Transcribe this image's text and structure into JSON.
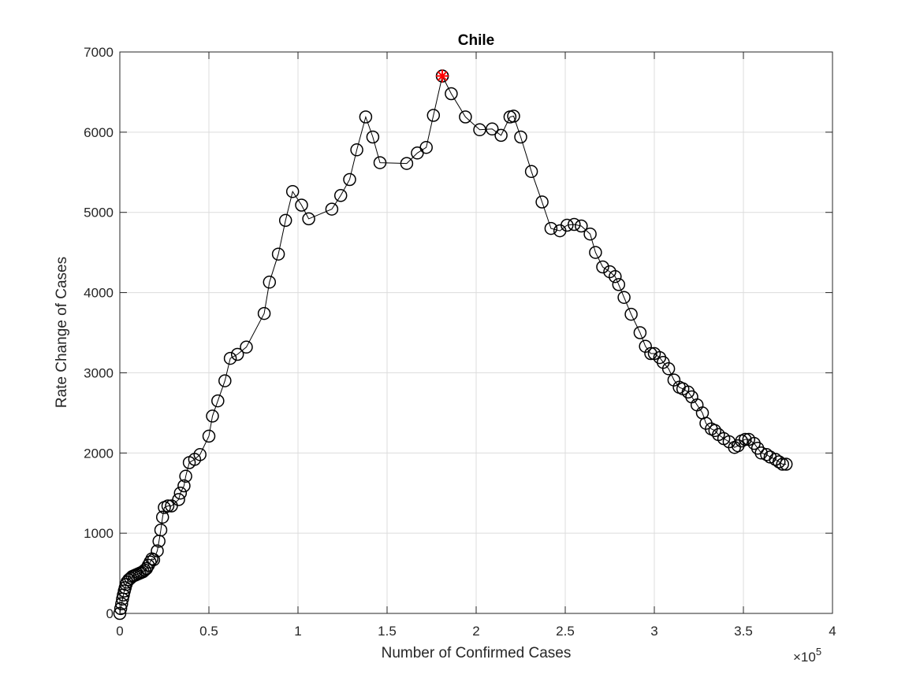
{
  "chart_data": {
    "type": "scatter",
    "title": "Chile",
    "xlabel": "Number of Confirmed Cases",
    "ylabel": "Rate Change of Cases",
    "x_multiplier_prefix": "×10",
    "x_multiplier_exponent": "5",
    "xlim": [
      0,
      4
    ],
    "ylim": [
      0,
      7000
    ],
    "xticks": [
      0,
      0.5,
      1,
      1.5,
      2,
      2.5,
      3,
      3.5,
      4
    ],
    "xtick_labels": [
      "0",
      "0.5",
      "1",
      "1.5",
      "2",
      "2.5",
      "3",
      "3.5",
      "4"
    ],
    "yticks": [
      0,
      1000,
      2000,
      3000,
      4000,
      5000,
      6000,
      7000
    ],
    "ytick_labels": [
      "0",
      "1000",
      "2000",
      "3000",
      "4000",
      "5000",
      "6000",
      "7000"
    ],
    "grid": true,
    "line_color": "#000000",
    "marker": "circle",
    "highlight_color": "#ff0000",
    "highlight_marker": "asterisk",
    "highlight_point": [
      1.81,
      6700
    ],
    "x": [
      0.0,
      0.005,
      0.01,
      0.015,
      0.02,
      0.025,
      0.03,
      0.035,
      0.04,
      0.05,
      0.06,
      0.07,
      0.08,
      0.09,
      0.1,
      0.11,
      0.12,
      0.13,
      0.14,
      0.15,
      0.16,
      0.17,
      0.18,
      0.19,
      0.21,
      0.22,
      0.23,
      0.24,
      0.25,
      0.27,
      0.29,
      0.33,
      0.34,
      0.36,
      0.37,
      0.39,
      0.42,
      0.45,
      0.5,
      0.52,
      0.55,
      0.59,
      0.62,
      0.66,
      0.71,
      0.81,
      0.84,
      0.89,
      0.93,
      0.97,
      1.02,
      1.06,
      1.19,
      1.24,
      1.29,
      1.33,
      1.38,
      1.42,
      1.46,
      1.61,
      1.67,
      1.72,
      1.76,
      1.81,
      1.86,
      1.94,
      2.02,
      2.09,
      2.14,
      2.19,
      2.21,
      2.25,
      2.31,
      2.37,
      2.42,
      2.47,
      2.51,
      2.55,
      2.59,
      2.64,
      2.67,
      2.71,
      2.75,
      2.78,
      2.8,
      2.83,
      2.87,
      2.92,
      2.95,
      2.98,
      3.0,
      3.03,
      3.05,
      3.08,
      3.11,
      3.14,
      3.16,
      3.19,
      3.21,
      3.24,
      3.27,
      3.29,
      3.32,
      3.34,
      3.36,
      3.39,
      3.42,
      3.45,
      3.47,
      3.49,
      3.51,
      3.53,
      3.56,
      3.58,
      3.6,
      3.63,
      3.65,
      3.68,
      3.7,
      3.72,
      3.74
    ],
    "y": [
      0,
      60,
      120,
      180,
      230,
      280,
      320,
      360,
      390,
      420,
      440,
      460,
      470,
      480,
      490,
      500,
      510,
      520,
      540,
      560,
      600,
      640,
      680,
      670,
      780,
      900,
      1040,
      1200,
      1320,
      1340,
      1340,
      1420,
      1500,
      1590,
      1710,
      1880,
      1920,
      1980,
      2210,
      2460,
      2650,
      2900,
      3180,
      3230,
      3320,
      3740,
      4130,
      4480,
      4900,
      5260,
      5090,
      4920,
      5040,
      5210,
      5410,
      5780,
      6190,
      5940,
      5620,
      5610,
      5740,
      5810,
      6210,
      6700,
      6480,
      6190,
      6030,
      6040,
      5960,
      6190,
      6200,
      5940,
      5510,
      5130,
      4800,
      4770,
      4840,
      4850,
      4830,
      4730,
      4500,
      4320,
      4260,
      4200,
      4100,
      3940,
      3730,
      3500,
      3330,
      3240,
      3240,
      3190,
      3130,
      3050,
      2910,
      2820,
      2800,
      2760,
      2700,
      2600,
      2500,
      2370,
      2300,
      2280,
      2230,
      2180,
      2140,
      2070,
      2090,
      2150,
      2170,
      2170,
      2120,
      2060,
      2000,
      1980,
      1950,
      1920,
      1890,
      1860,
      1860
    ]
  }
}
